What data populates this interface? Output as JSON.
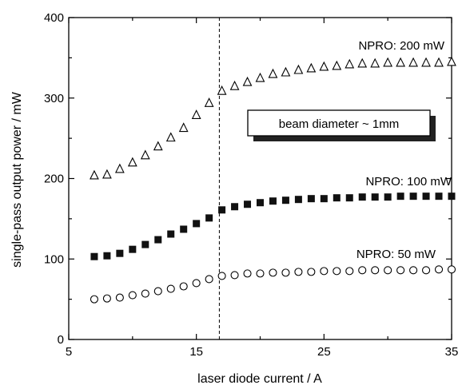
{
  "chart_data": {
    "type": "scatter",
    "xlabel": "laser diode current / A",
    "ylabel": "single-pass output power / mW",
    "xlim": [
      5,
      35
    ],
    "ylim": [
      0,
      400
    ],
    "xticks": [
      5,
      15,
      25,
      35
    ],
    "yticks": [
      0,
      100,
      200,
      300,
      400
    ],
    "grid": false,
    "series": [
      {
        "name": "NPRO: 200 mW",
        "marker": "open-triangle",
        "x": [
          7,
          8,
          9,
          10,
          11,
          12,
          13,
          14,
          15,
          16,
          17,
          18,
          19,
          20,
          21,
          22,
          23,
          24,
          25,
          26,
          27,
          28,
          29,
          30,
          31,
          32,
          33,
          34,
          35
        ],
        "y": [
          204,
          205,
          212,
          220,
          229,
          240,
          251,
          263,
          279,
          294,
          309,
          315,
          320,
          325,
          330,
          332,
          335,
          337,
          339,
          340,
          342,
          343,
          343,
          344,
          344,
          344,
          344,
          344,
          345
        ]
      },
      {
        "name": "NPRO: 100 mW",
        "marker": "filled-square",
        "x": [
          7,
          8,
          9,
          10,
          11,
          12,
          13,
          14,
          15,
          16,
          17,
          18,
          19,
          20,
          21,
          22,
          23,
          24,
          25,
          26,
          27,
          28,
          29,
          30,
          31,
          32,
          33,
          34,
          35
        ],
        "y": [
          103,
          104,
          107,
          112,
          118,
          124,
          131,
          137,
          144,
          151,
          161,
          165,
          168,
          170,
          172,
          173,
          174,
          175,
          175,
          176,
          176,
          177,
          177,
          177,
          178,
          178,
          178,
          178,
          178
        ]
      },
      {
        "name": "NPRO: 50 mW",
        "marker": "open-circle",
        "x": [
          7,
          8,
          9,
          10,
          11,
          12,
          13,
          14,
          15,
          16,
          17,
          18,
          19,
          20,
          21,
          22,
          23,
          24,
          25,
          26,
          27,
          28,
          29,
          30,
          31,
          32,
          33,
          34,
          35
        ],
        "y": [
          50,
          51,
          52,
          55,
          57,
          60,
          63,
          66,
          70,
          75,
          79,
          80,
          82,
          82,
          83,
          83,
          84,
          84,
          85,
          85,
          85,
          86,
          86,
          86,
          86,
          86,
          86,
          87,
          87
        ]
      }
    ],
    "vline_x": 16.8,
    "annotation": "beam diameter ~ 1mm",
    "colors": {
      "marker": "#000000",
      "axes": "#000000",
      "background": "#ffffff"
    }
  }
}
